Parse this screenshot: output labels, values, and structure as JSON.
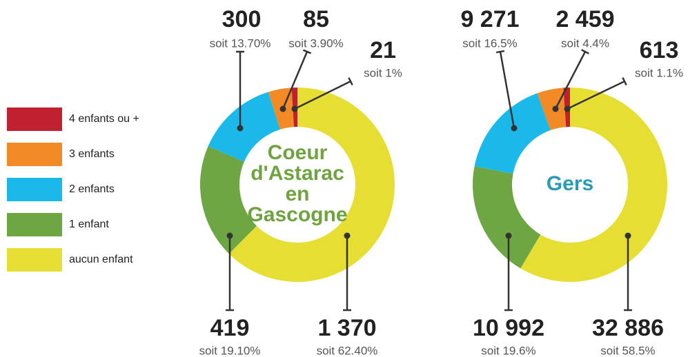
{
  "chart_data": [
    {
      "type": "pie",
      "donut": true,
      "title": [
        "Coeur",
        "d'Astarac",
        "en",
        "Gascogne"
      ],
      "title_color": "#6fa33f",
      "categories": [
        "aucun enfant",
        "1 enfant",
        "2 enfants",
        "3 enfants",
        "4 enfants ou +"
      ],
      "colors": [
        "#e6de33",
        "#6fa644",
        "#1bb8ea",
        "#f28a25",
        "#c0202f"
      ],
      "values": [
        1370,
        419,
        300,
        85,
        21
      ],
      "value_labels": [
        "1 370",
        "419",
        "300",
        "85",
        "21"
      ],
      "percents": [
        62.4,
        19.1,
        13.7,
        3.9,
        1
      ],
      "percent_labels": [
        "soit 62.40%",
        "soit 19.10%",
        "soit 13.70%",
        "soit 3.90%",
        "soit 1%"
      ]
    },
    {
      "type": "pie",
      "donut": true,
      "title": [
        "Gers"
      ],
      "title_color": "#2a9bb5",
      "categories": [
        "aucun enfant",
        "1 enfant",
        "2 enfants",
        "3 enfants",
        "4 enfants ou +"
      ],
      "colors": [
        "#e6de33",
        "#6fa644",
        "#1bb8ea",
        "#f28a25",
        "#c0202f"
      ],
      "values": [
        32886,
        10992,
        9271,
        2459,
        613
      ],
      "value_labels": [
        "32 886",
        "10 992",
        "9 271",
        "2 459",
        "613"
      ],
      "percents": [
        58.5,
        19.6,
        16.5,
        4.4,
        1.1
      ],
      "percent_labels": [
        "soit 58.5%",
        "soit 19.6%",
        "soit 16.5%",
        "soit 4.4%",
        "soit 1.1%"
      ]
    }
  ]
}
